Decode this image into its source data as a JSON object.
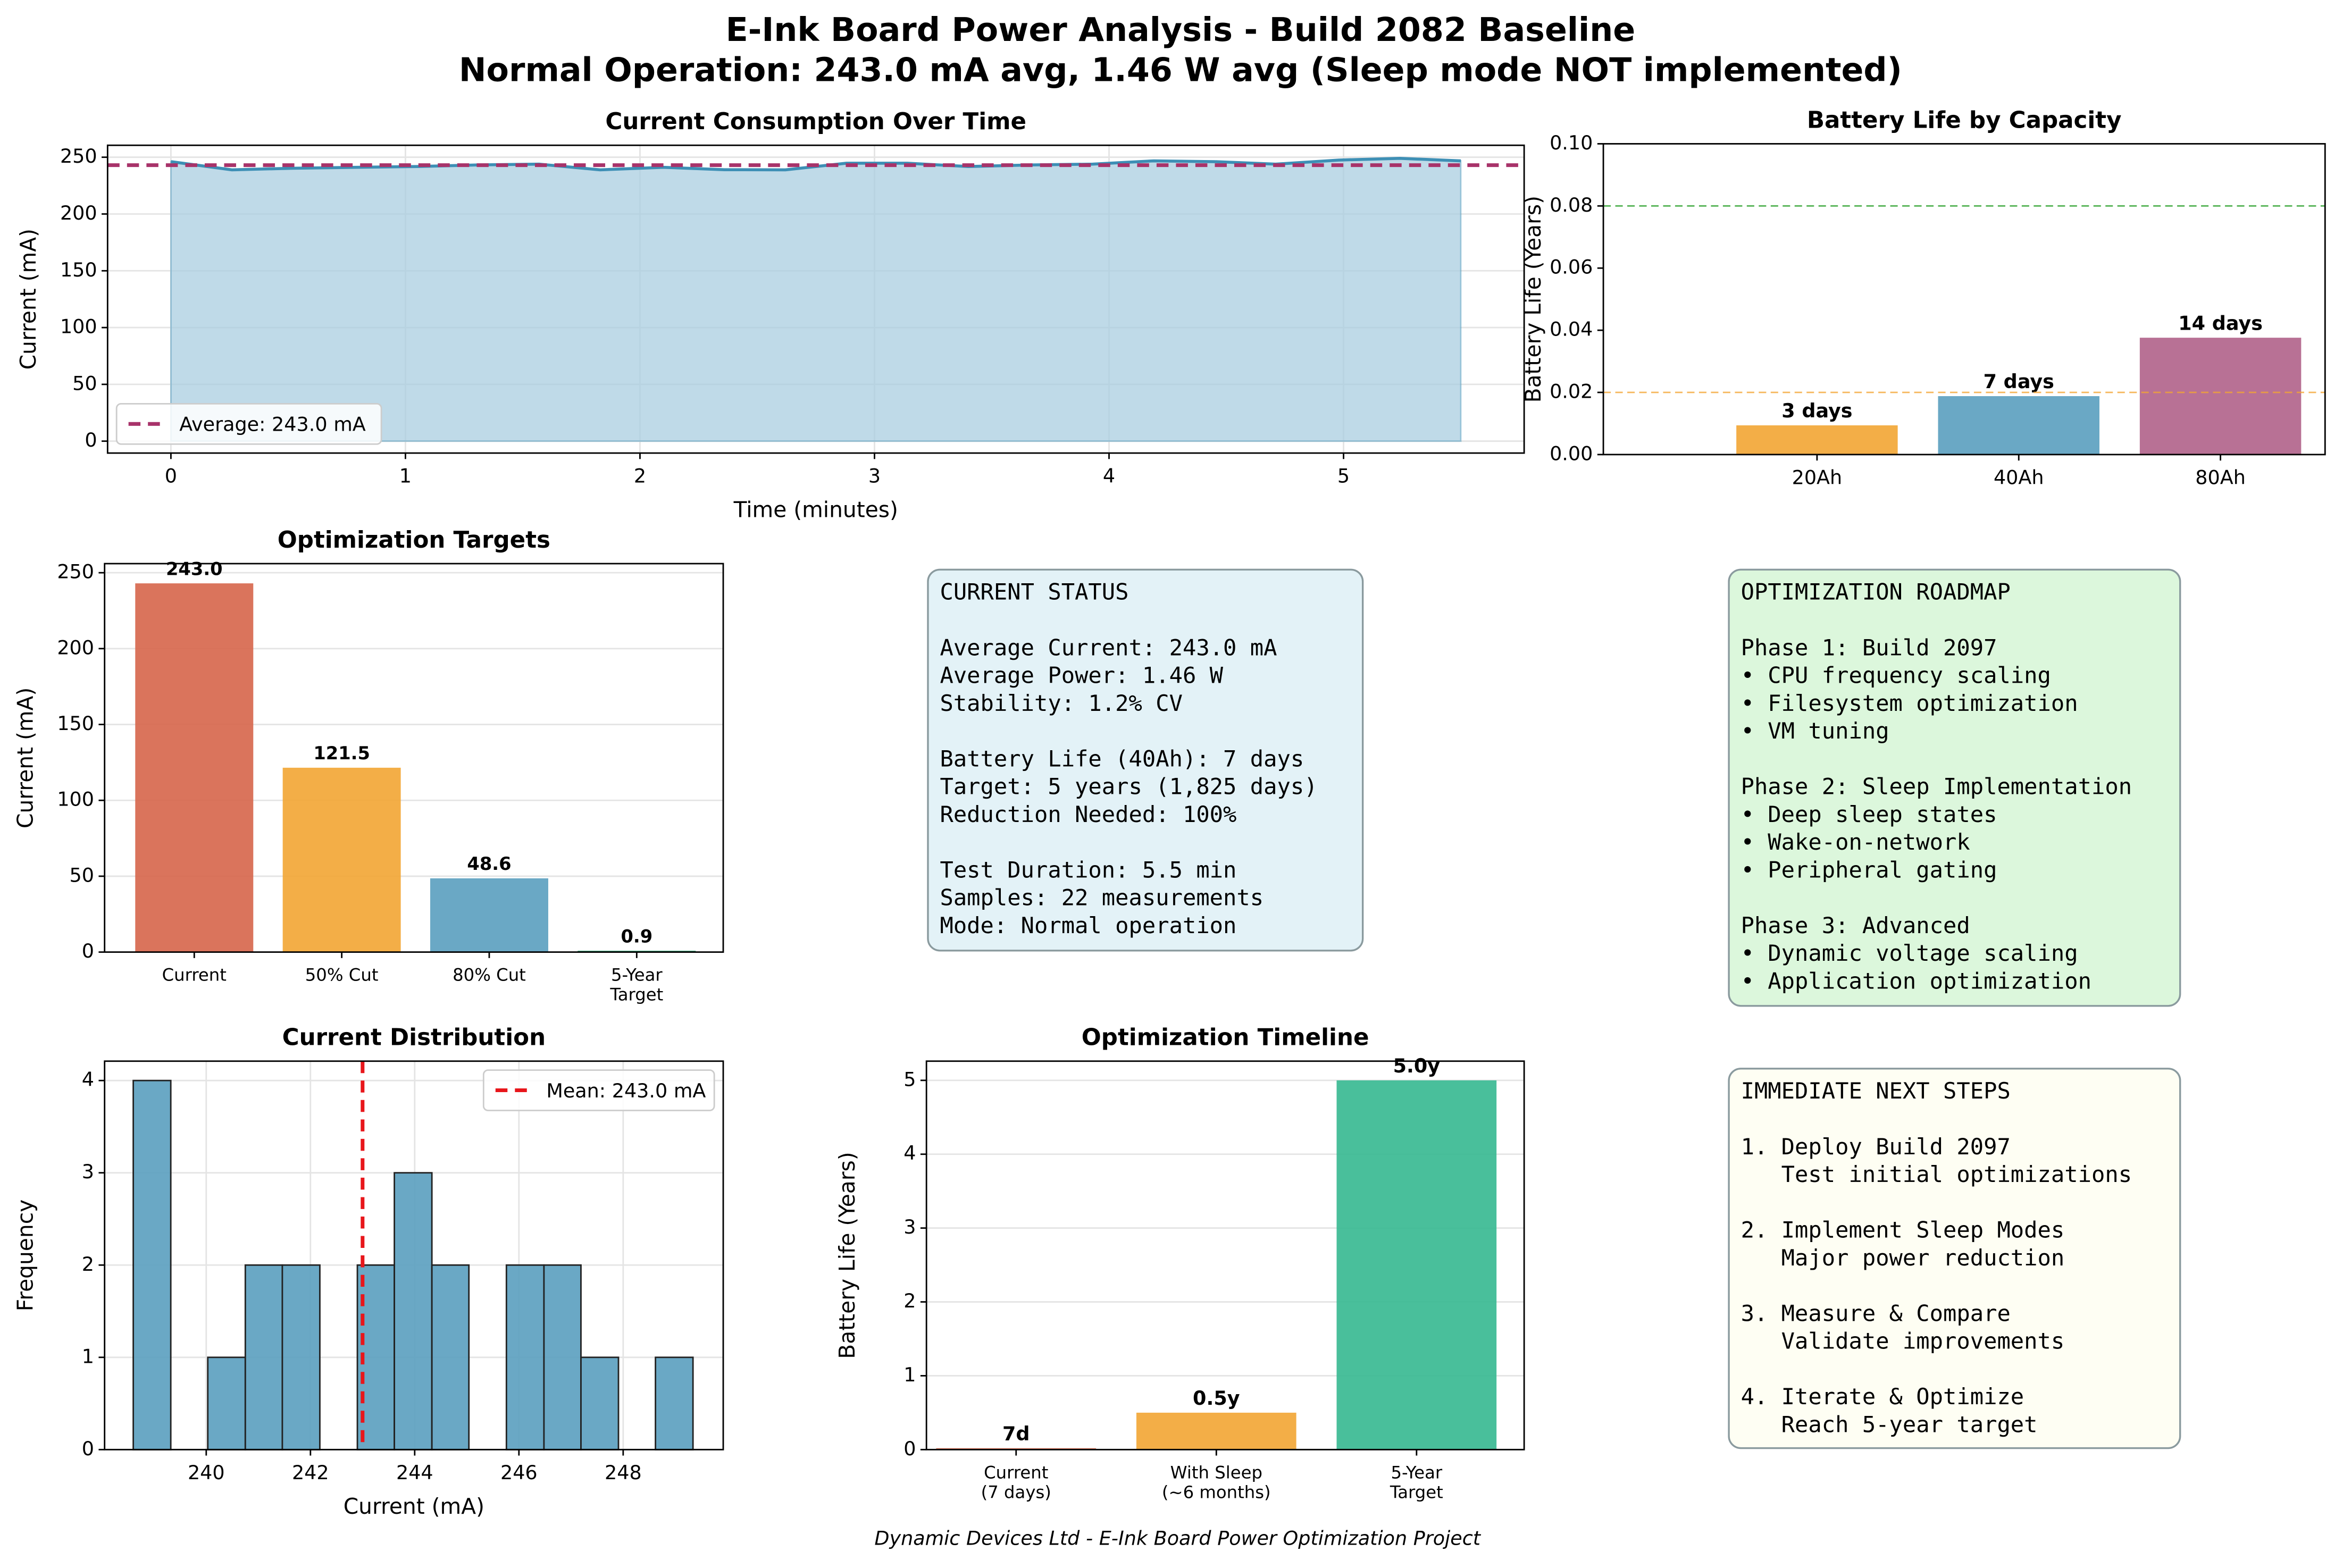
{
  "title": "E-Ink Board Power Analysis - Build 2082 Baseline",
  "subtitle": "Normal Operation: 243.0 mA avg, 1.46 W avg (Sleep mode NOT implemented)",
  "footer": "Dynamic Devices Ltd - E-Ink Board Power Optimization Project",
  "chart_data": [
    {
      "type": "area",
      "title": "Current Consumption Over Time",
      "x_label": "Time (minutes)",
      "y_label": "Current (mA)",
      "x": [
        0,
        0.26,
        0.52,
        0.79,
        1.05,
        1.31,
        1.57,
        1.83,
        2.1,
        2.36,
        2.62,
        2.88,
        3.14,
        3.4,
        3.67,
        3.93,
        4.19,
        4.45,
        4.71,
        4.98,
        5.24,
        5.5
      ],
      "values": [
        246.1,
        238.9,
        240.3,
        241.1,
        241.8,
        243.2,
        243.9,
        238.9,
        241.1,
        239.0,
        238.9,
        244.7,
        244.7,
        241.8,
        243.2,
        243.9,
        246.8,
        246.1,
        243.9,
        247.5,
        249.0,
        246.8
      ],
      "color": "#3d8fb5",
      "fill_color": "#aacde0",
      "xlim": [
        -0.27,
        5.77
      ],
      "xticks": [
        0,
        1,
        2,
        3,
        4,
        5
      ],
      "ylim": [
        -10.5,
        260.5
      ],
      "yticks": [
        0,
        50,
        100,
        150,
        200,
        250
      ],
      "grid": true,
      "hlines": [
        {
          "value": 243.0,
          "label": "Average: 243.0 mA",
          "color": "#a8336a"
        }
      ],
      "legend": "lower left"
    },
    {
      "type": "bar",
      "title": "Battery Life by Capacity",
      "y_label": "Battery Life (Years)",
      "categories": [
        "20Ah",
        "40Ah",
        "80Ah"
      ],
      "values": [
        0.0094,
        0.0188,
        0.0376
      ],
      "value_labels": [
        "3 days",
        "7 days",
        "14 days"
      ],
      "colors": [
        "#f2a533",
        "#5a9fbf",
        "#b06289"
      ],
      "ylim": [
        0,
        0.1
      ],
      "yticks": [
        {
          "value": 0,
          "label": "0.00"
        },
        {
          "value": 0.02,
          "label": "0.02"
        },
        {
          "value": 0.04,
          "label": "0.04"
        },
        {
          "value": 0.06,
          "label": "0.06"
        },
        {
          "value": 0.08,
          "label": "0.08"
        },
        {
          "value": 0.1,
          "label": "0.10"
        }
      ],
      "grid": false,
      "hlines": [
        {
          "value": 0.08,
          "color": "#2ca02c"
        },
        {
          "value": 0.02,
          "color": "#f2a533"
        }
      ]
    },
    {
      "type": "bar",
      "title": "Optimization Targets",
      "y_label": "Current (mA)",
      "categories": [
        "Current",
        "50% Cut",
        "80% Cut",
        "5-Year\nTarget"
      ],
      "values": [
        243.0,
        121.5,
        48.6,
        0.9
      ],
      "value_labels": [
        "243.0",
        "121.5",
        "48.6",
        "0.9"
      ],
      "colors": [
        "#d6654a",
        "#f2a533",
        "#5a9fbf",
        "#2a9d6e"
      ],
      "ylim": [
        0,
        256
      ],
      "yticks": [
        0,
        50,
        100,
        150,
        200,
        250
      ],
      "grid": true
    },
    {
      "type": "histogram",
      "title": "Current Distribution",
      "x_label": "Current (mA)",
      "y_label": "Frequency",
      "bins": [
        238.6,
        239.32,
        240.03,
        240.75,
        241.46,
        242.18,
        242.9,
        243.61,
        244.33,
        245.04,
        245.76,
        246.48,
        247.19,
        247.91,
        248.62,
        249.34
      ],
      "values": [
        4,
        0,
        1,
        2,
        2,
        0,
        2,
        3,
        2,
        0,
        2,
        2,
        1,
        0,
        1
      ],
      "color": "#5a9fbf",
      "xlim": [
        238.05,
        249.92
      ],
      "xticks": [
        240,
        242,
        244,
        246,
        248
      ],
      "ylim": [
        0,
        4.21
      ],
      "yticks": [
        0,
        1,
        2,
        3,
        4
      ],
      "grid": true,
      "vlines": [
        {
          "value": 243.0,
          "label": "Mean: 243.0 mA",
          "color": "#e8161b"
        }
      ],
      "legend": "upper right"
    },
    {
      "type": "bar",
      "title": "Optimization Timeline",
      "y_label": "Battery Life (Years)",
      "categories": [
        "Current\n(7 days)",
        "With Sleep\n(~6 months)",
        "5-Year\nTarget"
      ],
      "values": [
        0.0192,
        0.5,
        5.0
      ],
      "value_labels": [
        "7d",
        "0.5y",
        "5.0y"
      ],
      "colors": [
        "#d6654a",
        "#f2a533",
        "#35b890"
      ],
      "ylim": [
        0,
        5.26
      ],
      "yticks": [
        0,
        1,
        2,
        3,
        4,
        5
      ],
      "grid": true
    }
  ],
  "panels": [
    {
      "title": "CURRENT STATUS",
      "color": "#e3f2f7",
      "sections": [
        [
          "Average Current: 243.0 mA",
          "Average Power: 1.46 W",
          "Stability: 1.2% CV"
        ],
        [
          "Battery Life (40Ah): 7 days",
          "Target: 5 years (1,825 days)",
          "Reduction Needed: 100%"
        ],
        [
          "Test Duration: 5.5 min",
          "Samples: 22 measurements",
          "Mode: Normal operation"
        ]
      ]
    },
    {
      "title": "OPTIMIZATION ROADMAP",
      "color": "#dcf7dc",
      "sections": [
        [
          "Phase 1: Build 2097",
          "• CPU frequency scaling",
          "• Filesystem optimization",
          "• VM tuning"
        ],
        [
          "Phase 2: Sleep Implementation",
          "• Deep sleep states",
          "• Wake-on-network",
          "• Peripheral gating"
        ],
        [
          "Phase 3: Advanced",
          "• Dynamic voltage scaling",
          "• Application optimization"
        ]
      ]
    },
    {
      "title": "IMMEDIATE NEXT STEPS",
      "color": "#fefef3",
      "sections": [
        [
          "1. Deploy Build 2097",
          "   Test initial optimizations"
        ],
        [
          "2. Implement Sleep Modes",
          "   Major power reduction"
        ],
        [
          "3. Measure & Compare",
          "   Validate improvements"
        ],
        [
          "4. Iterate & Optimize",
          "   Reach 5-year target"
        ]
      ]
    }
  ]
}
